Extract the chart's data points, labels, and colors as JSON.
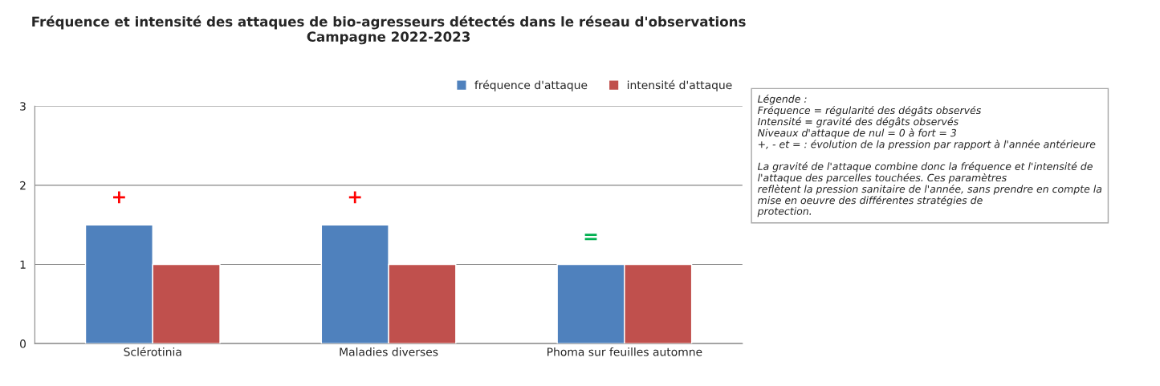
{
  "chart_data": {
    "type": "bar",
    "title": "Fréquence et intensité des attaques de bio-agresseurs détectés dans le réseau d'observations\nCampagne 2022-2023",
    "categories": [
      "Sclérotinia",
      "Maladies diverses",
      "Phoma sur feuilles automne"
    ],
    "series": [
      {
        "name": "fréquence d'attaque",
        "color": "#4f81bd",
        "values": [
          1.5,
          1.5,
          1
        ]
      },
      {
        "name": "intensité d'attaque",
        "color": "#c0504d",
        "values": [
          1,
          1,
          1
        ]
      }
    ],
    "ylim": [
      0,
      3
    ],
    "yticks": [
      0,
      1,
      2,
      3
    ],
    "grid": "y",
    "legend": "top right",
    "annotations": [
      "+",
      "+",
      "=",
      "Légende :\nFréquence = régularité des dégâts observés\nIntensité = gravité des dégâts observés\nNiveaux d'attaque de nul = 0 à fort = 3\n+, - et = : évolution de la pression par rapport à l'année antérieure\n\nLa gravité de l'attaque combine donc la fréquence et l'intensité de\nl'attaque des parcelles touchées. Ces paramètres\nreflètent la pression sanitaire de l'année, sans prendre en compte la\nmise en oeuvre des différentes stratégies de\nprotection."
    ]
  }
}
